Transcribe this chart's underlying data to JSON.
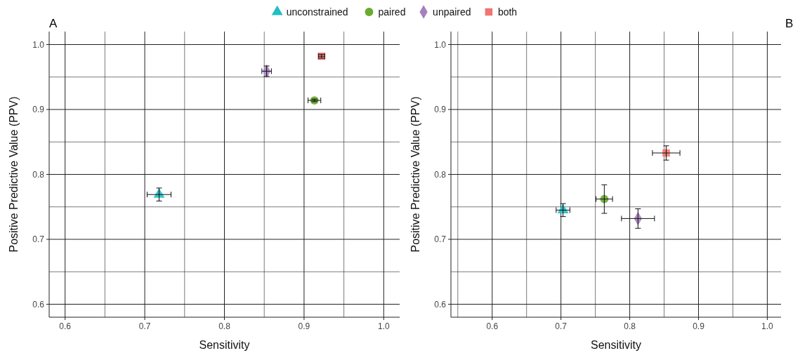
{
  "chart_data": [
    {
      "type": "scatter",
      "title": "A",
      "xlabel": "Sensitivity",
      "ylabel": "Positive Predictive Value (PPV)",
      "xlim": [
        0.58,
        1.02
      ],
      "ylim": [
        0.58,
        1.02
      ],
      "xticks": [
        0.6,
        {
          "value": 0.65,
          "label": null
        },
        0.7,
        {
          "value": 0.75,
          "label": null
        },
        0.8,
        {
          "value": 0.85,
          "label": null
        },
        0.9,
        {
          "value": 0.95,
          "label": null
        },
        {
          "value": 1,
          "label": "1.0"
        }
      ],
      "yticks": [
        0.6,
        {
          "value": 0.65,
          "label": null
        },
        0.7,
        {
          "value": 0.75,
          "label": null
        },
        0.8,
        {
          "value": 0.85,
          "label": null
        },
        0.9,
        {
          "value": 0.95,
          "label": null
        },
        {
          "value": 1,
          "label": "1.0"
        }
      ],
      "grid": true,
      "legend": "top",
      "series": [
        {
          "name": "unconstrained",
          "color": "#1fbfc4",
          "marker": "triangle",
          "x": [
            0.718
          ],
          "values": [
            0.769
          ],
          "errors": [
            0.01
          ],
          "xerrors": [
            0.015
          ]
        },
        {
          "name": "paired",
          "color": "#6aaa2e",
          "marker": "circle",
          "x": [
            0.913
          ],
          "values": [
            0.914
          ],
          "errors": [
            0.002
          ],
          "xerrors": [
            0.008
          ]
        },
        {
          "name": "unpaired",
          "color": "#a77fc0",
          "marker": "diamond",
          "x": [
            0.853
          ],
          "values": [
            0.959
          ],
          "errors": [
            0.008
          ],
          "xerrors": [
            0.006
          ]
        },
        {
          "name": "both",
          "color": "#f07470",
          "marker": "square",
          "x": [
            0.922
          ],
          "values": [
            0.982
          ],
          "errors": [
            0.003
          ],
          "xerrors": [
            0.004
          ]
        }
      ]
    },
    {
      "type": "scatter",
      "xlabel": "Sensitivity",
      "ylabel": "Positive Predictive Value (PPV)",
      "annotations": [
        "B"
      ],
      "xlim": [
        0.54,
        1.02
      ],
      "ylim": [
        0.58,
        1.02
      ],
      "xticks": [
        {
          "value": 0.55,
          "label": null
        },
        0.6,
        {
          "value": 0.65,
          "label": null
        },
        0.7,
        {
          "value": 0.75,
          "label": null
        },
        0.8,
        {
          "value": 0.85,
          "label": null
        },
        0.9,
        {
          "value": 0.95,
          "label": null
        },
        {
          "value": 1,
          "label": "1.0"
        }
      ],
      "yticks": [
        0.6,
        {
          "value": 0.65,
          "label": null
        },
        0.7,
        {
          "value": 0.75,
          "label": null
        },
        0.8,
        {
          "value": 0.85,
          "label": null
        },
        0.9,
        {
          "value": 0.95,
          "label": null
        },
        {
          "value": 1,
          "label": "1.0"
        }
      ],
      "grid": true,
      "series": [
        {
          "color": "#1fbfc4",
          "marker": "triangle",
          "x": [
            0.703
          ],
          "values": [
            0.745
          ],
          "errors": [
            0.01
          ],
          "xerrors": [
            0.01
          ]
        },
        {
          "color": "#6aaa2e",
          "marker": "circle",
          "x": [
            0.763
          ],
          "values": [
            0.762
          ],
          "errors": [
            0.022
          ],
          "xerrors": [
            0.012
          ]
        },
        {
          "color": "#a77fc0",
          "marker": "diamond",
          "x": [
            0.812
          ],
          "values": [
            0.732
          ],
          "errors": [
            0.015
          ],
          "xerrors": [
            0.024
          ]
        },
        {
          "color": "#f07470",
          "marker": "square",
          "x": [
            0.853
          ],
          "values": [
            0.833
          ],
          "errors": [
            0.011
          ],
          "xerrors": [
            0.02
          ]
        }
      ]
    }
  ]
}
